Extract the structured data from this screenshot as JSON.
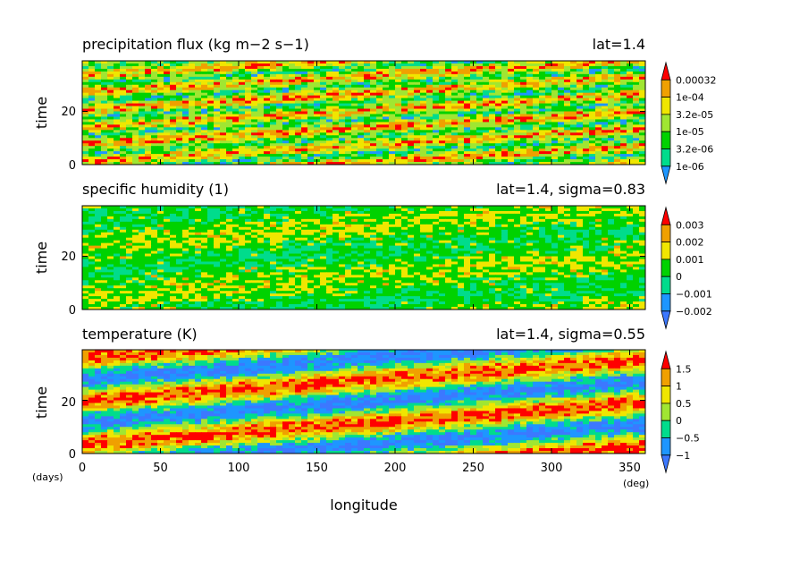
{
  "chart_data": {
    "type": "heatmap",
    "xlabel": "longitude",
    "x_unit": "(deg)",
    "y_unit": "(days)",
    "x_range": [
      0,
      360
    ],
    "x_ticks": [
      "0",
      "50",
      "100",
      "150",
      "200",
      "250",
      "300",
      "350"
    ],
    "panels": [
      {
        "title": "precipitation flux (kg m−2 s−1)",
        "annotation": "lat=1.4",
        "ylabel": "time",
        "y_ticks": [
          "0",
          "20"
        ],
        "y_range": [
          0,
          39
        ],
        "colorbar": {
          "labels": [
            "1e-06",
            "3.2e-06",
            "1e-05",
            "3.2e-05",
            "1e-04",
            "0.00032"
          ],
          "colors": [
            "#1e96ff",
            "#00dc8c",
            "#00d200",
            "#a0e632",
            "#f0e600",
            "#f0a000",
            "#ff0000"
          ]
        }
      },
      {
        "title": "specific humidity (1)",
        "annotation": "lat=1.4, sigma=0.83",
        "ylabel": "time",
        "y_ticks": [
          "0",
          "20"
        ],
        "y_range": [
          0,
          39
        ],
        "colorbar": {
          "labels": [
            "−0.002",
            "−0.001",
            "0",
            "0.001",
            "0.002",
            "0.003"
          ],
          "colors": [
            "#3c78ff",
            "#1e96ff",
            "#00dc8c",
            "#00d200",
            "#f0e600",
            "#f0a000",
            "#ff0000"
          ]
        }
      },
      {
        "title": "temperature (K)",
        "annotation": "lat=1.4, sigma=0.55",
        "ylabel": "time",
        "y_ticks": [
          "0",
          "20"
        ],
        "y_range": [
          0,
          39
        ],
        "colorbar": {
          "labels": [
            "−1",
            "−0.5",
            "0",
            "0.5",
            "1",
            "1.5"
          ],
          "colors": [
            "#3c78ff",
            "#1e96ff",
            "#00dc8c",
            "#a0e632",
            "#f0e600",
            "#f0a000",
            "#ff0000"
          ]
        }
      }
    ]
  }
}
